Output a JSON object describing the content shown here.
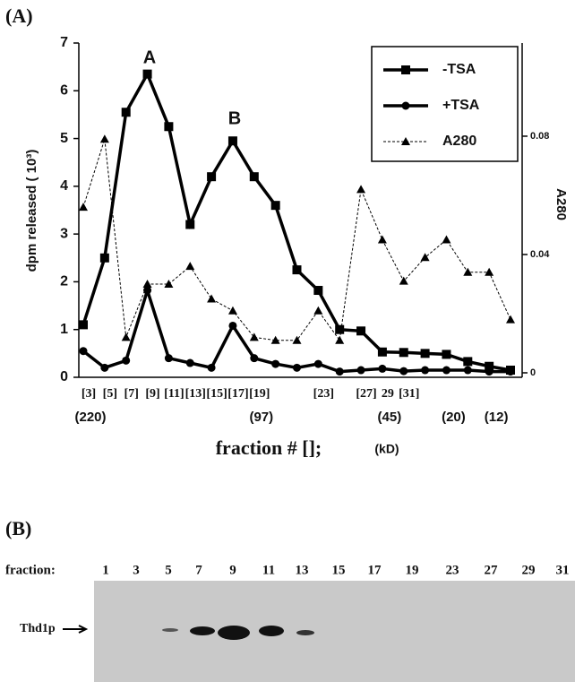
{
  "chart_data": {
    "type": "line",
    "panel_label": "(A)",
    "y_label": "dpm released ( 10³)",
    "y2_label": "A280",
    "x_label": "fraction  #  [];",
    "x2_label": "(kD)",
    "annotations": [
      "A",
      "B"
    ],
    "categories": [
      "[3]",
      "[5]",
      "[7]",
      "[9]",
      "[11]",
      "[13]",
      "[15]",
      "[17]",
      "[19]",
      null,
      null,
      "[23]",
      null,
      "[27]",
      "29",
      "[31]",
      null,
      null,
      null,
      null,
      null
    ],
    "size_labels": [
      "(220)",
      null,
      null,
      null,
      null,
      null,
      null,
      null,
      "(97)",
      null,
      null,
      null,
      null,
      null,
      "(45)",
      null,
      null,
      "(20)",
      null,
      "(12)",
      null
    ],
    "series": [
      {
        "name": "-TSA",
        "color": "#000000",
        "marker": "square",
        "dash": false,
        "values": [
          1.1,
          2.5,
          5.55,
          6.35,
          5.25,
          3.2,
          4.2,
          4.95,
          4.2,
          3.6,
          2.25,
          1.82,
          1.0,
          0.97,
          0.53,
          0.52,
          0.5,
          0.48,
          0.33,
          0.23,
          0.15
        ]
      },
      {
        "name": "+TSA",
        "color": "#000000",
        "marker": "circle",
        "dash": false,
        "values": [
          0.55,
          0.2,
          0.35,
          1.82,
          0.4,
          0.3,
          0.2,
          1.08,
          0.4,
          0.28,
          0.2,
          0.28,
          0.12,
          0.15,
          0.18,
          0.13,
          0.15,
          0.15,
          0.15,
          0.12,
          0.12
        ]
      },
      {
        "name": "A280",
        "color": "#000000",
        "marker": "triangle",
        "dash": true,
        "axis": "y2",
        "values": [
          0.056,
          0.079,
          0.012,
          0.03,
          0.03,
          0.036,
          0.025,
          0.021,
          0.012,
          0.011,
          0.011,
          0.021,
          0.011,
          0.062,
          0.045,
          0.031,
          0.039,
          0.045,
          0.034,
          0.034,
          0.018
        ]
      }
    ],
    "ylim": [
      0,
      7
    ],
    "yticks": [
      0,
      1,
      2,
      3,
      4,
      5,
      6,
      7
    ],
    "y2lim": [
      0,
      0.1115
    ],
    "y2ticks": [
      0,
      0.04,
      0.08
    ]
  },
  "gel": {
    "panel_label": "(B)",
    "header": "fraction:",
    "lanes": [
      "1",
      "3",
      "5",
      "7",
      "9",
      "11",
      "13",
      "15",
      "17",
      "19",
      "23",
      "27",
      "29",
      "31"
    ],
    "band_label": "Thd1p"
  }
}
